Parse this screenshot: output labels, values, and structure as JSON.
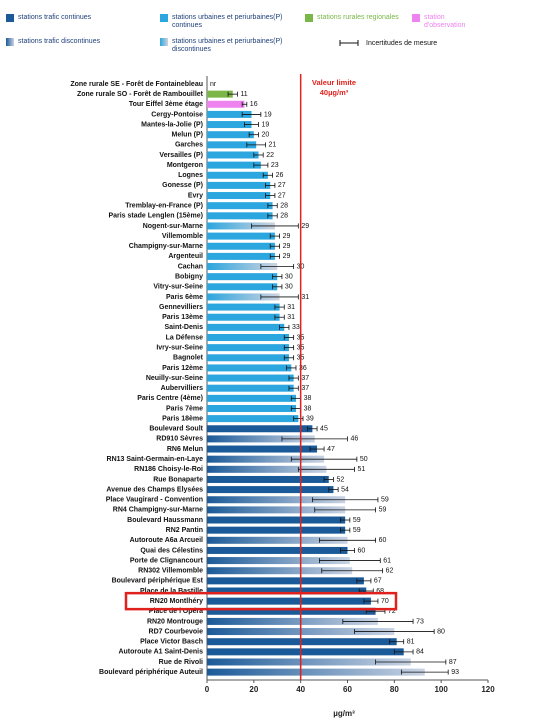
{
  "chart_data": {
    "type": "bar",
    "orientation": "horizontal",
    "categories": [
      "Zone rurale SE - Forêt de Fontainebleau",
      "Zone rurale SO - Forêt de Rambouillet",
      "Tour Eiffel 3ème étage",
      "Cergy-Pontoise",
      "Mantes-la-Jolie (P)",
      "Melun (P)",
      "Garches",
      "Versailles (P)",
      "Montgeron",
      "Lognes",
      "Gonesse (P)",
      "Evry",
      "Tremblay-en-France (P)",
      "Paris stade Lenglen (15ème)",
      "Nogent-sur-Marne",
      "Villemomble",
      "Champigny-sur-Marne",
      "Argenteuil",
      "Cachan",
      "Bobigny",
      "Vitry-sur-Seine",
      "Paris 6ème",
      "Gennevilliers",
      "Paris 13ème",
      "Saint-Denis",
      "La Défense",
      "Ivry-sur-Seine",
      "Bagnolet",
      "Paris 12ème",
      "Neuilly-sur-Seine",
      "Aubervilliers",
      "Paris Centre (4ème)",
      "Paris 7ème",
      "Paris 18ème",
      "Boulevard Soult",
      "RD910 Sèvres",
      "RN6 Melun",
      "RN13 Saint-Germain-en-Laye",
      "RN186 Choisy-le-Roi",
      "Rue Bonaparte",
      "Avenue des Champs Elysées",
      "Place Vaugirard - Convention",
      "RN4 Champigny-sur-Marne",
      "Boulevard Haussmann",
      "RN2 Pantin",
      "Autoroute A6a Arcueil",
      "Quai des Célestins",
      "Porte de Clignancourt",
      "RN302 Villemomble",
      "Boulevard périphérique Est",
      "Place de la Bastille",
      "RN20 Montlhéry",
      "Place de l'Opéra",
      "RN20 Montrouge",
      "RD7 Courbevoie",
      "Place Victor Basch",
      "Autoroute A1 Saint-Denis",
      "Rue de Rivoli",
      "Boulevard périphérique Auteuil"
    ],
    "series": [
      {
        "name": "stations trafic continues",
        "color": "#1b5a98",
        "values": [
          null,
          null,
          null,
          null,
          null,
          null,
          null,
          null,
          null,
          null,
          null,
          null,
          null,
          null,
          null,
          null,
          null,
          null,
          null,
          null,
          null,
          null,
          null,
          null,
          null,
          null,
          null,
          null,
          null,
          null,
          null,
          null,
          null,
          null,
          45,
          null,
          47,
          null,
          null,
          52,
          54,
          null,
          null,
          59,
          59,
          null,
          60,
          null,
          null,
          67,
          68,
          70,
          72,
          null,
          null,
          81,
          84,
          null,
          null
        ],
        "errors": [
          null,
          null,
          null,
          null,
          null,
          null,
          null,
          null,
          null,
          null,
          null,
          null,
          null,
          null,
          null,
          null,
          null,
          null,
          null,
          null,
          null,
          null,
          null,
          null,
          null,
          null,
          null,
          null,
          null,
          null,
          null,
          null,
          null,
          null,
          2,
          null,
          3,
          null,
          null,
          2,
          2,
          null,
          null,
          2,
          2,
          null,
          3,
          null,
          null,
          3,
          3,
          3,
          4,
          null,
          null,
          3,
          4,
          null,
          null
        ]
      },
      {
        "name": "stations urbaines et periurbaines(P) continues",
        "color": "#2ba6de",
        "values": [
          null,
          null,
          null,
          19,
          19,
          20,
          21,
          22,
          23,
          26,
          27,
          27,
          28,
          28,
          null,
          29,
          29,
          29,
          null,
          30,
          30,
          null,
          31,
          31,
          33,
          35,
          35,
          35,
          36,
          37,
          37,
          38,
          38,
          39,
          null,
          null,
          null,
          null,
          null,
          null,
          null,
          null,
          null,
          null,
          null,
          null,
          null,
          null,
          null,
          null,
          null,
          null,
          null,
          null,
          null,
          null,
          null,
          null,
          null
        ],
        "errors": [
          null,
          null,
          null,
          4,
          3,
          2,
          4,
          2,
          3,
          2,
          2,
          2,
          2,
          2,
          null,
          2,
          2,
          2,
          null,
          2,
          2,
          null,
          2,
          2,
          2,
          2,
          2,
          2,
          2,
          2,
          2,
          2,
          2,
          2,
          null,
          null,
          null,
          null,
          null,
          null,
          null,
          null,
          null,
          null,
          null,
          null,
          null,
          null,
          null,
          null,
          null,
          null,
          null,
          null,
          null,
          null,
          null,
          null,
          null
        ]
      },
      {
        "name": "stations rurales regionales",
        "color": "#7ab648",
        "values": [
          null,
          11,
          null,
          null,
          null,
          null,
          null,
          null,
          null,
          null,
          null,
          null,
          null,
          null,
          null,
          null,
          null,
          null,
          null,
          null,
          null,
          null,
          null,
          null,
          null,
          null,
          null,
          null,
          null,
          null,
          null,
          null,
          null,
          null,
          null,
          null,
          null,
          null,
          null,
          null,
          null,
          null,
          null,
          null,
          null,
          null,
          null,
          null,
          null,
          null,
          null,
          null,
          null,
          null,
          null,
          null,
          null,
          null,
          null
        ],
        "value_labels": [
          "nr",
          null,
          null,
          null,
          null,
          null,
          null,
          null,
          null,
          null,
          null,
          null,
          null,
          null,
          null,
          null,
          null,
          null,
          null,
          null,
          null,
          null,
          null,
          null,
          null,
          null,
          null,
          null,
          null,
          null,
          null,
          null,
          null,
          null,
          null,
          null,
          null,
          null,
          null,
          null,
          null,
          null,
          null,
          null,
          null,
          null,
          null,
          null,
          null,
          null,
          null,
          null,
          null,
          null,
          null,
          null,
          null,
          null,
          null
        ],
        "errors": [
          null,
          2,
          null,
          null,
          null,
          null,
          null,
          null,
          null,
          null,
          null,
          null,
          null,
          null,
          null,
          null,
          null,
          null,
          null,
          null,
          null,
          null,
          null,
          null,
          null,
          null,
          null,
          null,
          null,
          null,
          null,
          null,
          null,
          null,
          null,
          null,
          null,
          null,
          null,
          null,
          null,
          null,
          null,
          null,
          null,
          null,
          null,
          null,
          null,
          null,
          null,
          null,
          null,
          null,
          null,
          null,
          null,
          null,
          null
        ]
      },
      {
        "name": "station d'observation",
        "color": "#ee82ee",
        "values": [
          null,
          null,
          16,
          null,
          null,
          null,
          null,
          null,
          null,
          null,
          null,
          null,
          null,
          null,
          null,
          null,
          null,
          null,
          null,
          null,
          null,
          null,
          null,
          null,
          null,
          null,
          null,
          null,
          null,
          null,
          null,
          null,
          null,
          null,
          null,
          null,
          null,
          null,
          null,
          null,
          null,
          null,
          null,
          null,
          null,
          null,
          null,
          null,
          null,
          null,
          null,
          null,
          null,
          null,
          null,
          null,
          null,
          null,
          null
        ],
        "errors": [
          null,
          null,
          1,
          null,
          null,
          null,
          null,
          null,
          null,
          null,
          null,
          null,
          null,
          null,
          null,
          null,
          null,
          null,
          null,
          null,
          null,
          null,
          null,
          null,
          null,
          null,
          null,
          null,
          null,
          null,
          null,
          null,
          null,
          null,
          null,
          null,
          null,
          null,
          null,
          null,
          null,
          null,
          null,
          null,
          null,
          null,
          null,
          null,
          null,
          null,
          null,
          null,
          null,
          null,
          null,
          null,
          null,
          null,
          null
        ]
      },
      {
        "name": "stations trafic discontinues",
        "color": "#1b5a98",
        "gradient_to": "#c9d3e3",
        "values": [
          null,
          null,
          null,
          null,
          null,
          null,
          null,
          null,
          null,
          null,
          null,
          null,
          null,
          null,
          null,
          null,
          null,
          null,
          null,
          null,
          null,
          null,
          null,
          null,
          null,
          null,
          null,
          null,
          null,
          null,
          null,
          null,
          null,
          null,
          null,
          46,
          null,
          50,
          51,
          null,
          null,
          59,
          59,
          null,
          null,
          60,
          null,
          61,
          62,
          null,
          null,
          null,
          null,
          73,
          80,
          null,
          null,
          87,
          93
        ],
        "errors": [
          null,
          null,
          null,
          null,
          null,
          null,
          null,
          null,
          null,
          null,
          null,
          null,
          null,
          null,
          null,
          null,
          null,
          null,
          null,
          null,
          null,
          null,
          null,
          null,
          null,
          null,
          null,
          null,
          null,
          null,
          null,
          null,
          null,
          null,
          null,
          14,
          null,
          14,
          12,
          null,
          null,
          14,
          13,
          null,
          null,
          12,
          null,
          13,
          13,
          null,
          null,
          null,
          null,
          15,
          17,
          null,
          null,
          15,
          10
        ]
      },
      {
        "name": "stations urbaines et periurbaines(P) discontinues",
        "color": "#2ba6de",
        "gradient_to": "#cfd3e0",
        "values": [
          null,
          null,
          null,
          null,
          null,
          null,
          null,
          null,
          null,
          null,
          null,
          null,
          null,
          null,
          29,
          null,
          null,
          null,
          30,
          null,
          null,
          31,
          null,
          null,
          null,
          null,
          null,
          null,
          null,
          null,
          null,
          null,
          null,
          null,
          null,
          null,
          null,
          null,
          null,
          null,
          null,
          null,
          null,
          null,
          null,
          null,
          null,
          null,
          null,
          null,
          null,
          null,
          null,
          null,
          null,
          null,
          null,
          null,
          null
        ],
        "errors": [
          null,
          null,
          null,
          null,
          null,
          null,
          null,
          null,
          null,
          null,
          null,
          null,
          null,
          null,
          10,
          null,
          null,
          null,
          7,
          null,
          null,
          8,
          null,
          null,
          null,
          null,
          null,
          null,
          null,
          null,
          null,
          null,
          null,
          null,
          null,
          null,
          null,
          null,
          null,
          null,
          null,
          null,
          null,
          null,
          null,
          null,
          null,
          null,
          null,
          null,
          null,
          null,
          null,
          null,
          null,
          null,
          null,
          null,
          null
        ]
      }
    ],
    "error_legend": "Incertitudes de mesure",
    "annotation": {
      "text": [
        "Valeur limite",
        "40µg/m³"
      ],
      "value": 40,
      "color": "#e0211d"
    },
    "xlabel": "µg/m³",
    "xlim": [
      0,
      120
    ],
    "xticks": [
      0,
      20,
      40,
      60,
      80,
      100,
      120
    ]
  }
}
